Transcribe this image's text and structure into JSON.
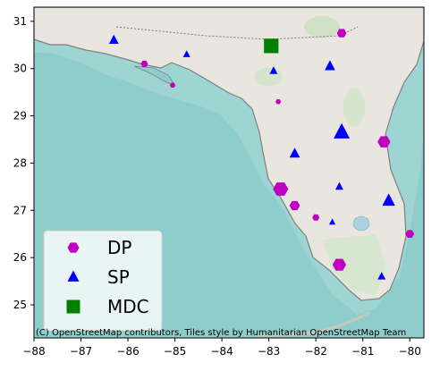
{
  "chart_data": {
    "type": "scatter",
    "xlim": [
      -88,
      -79.7
    ],
    "ylim": [
      24.3,
      31.3
    ],
    "xticks": [
      -88,
      -87,
      -86,
      -85,
      -84,
      -83,
      -82,
      -81,
      -80
    ],
    "xtick_labels": [
      "−88",
      "−87",
      "−86",
      "−85",
      "−84",
      "−83",
      "−82",
      "−81",
      "−80"
    ],
    "yticks": [
      25,
      26,
      27,
      28,
      29,
      30,
      31
    ],
    "ytick_labels": [
      "25",
      "26",
      "27",
      "28",
      "29",
      "30",
      "31"
    ],
    "grid": false,
    "legend_position": "lower-left",
    "basemap": "OpenStreetMap Humanitarian tiles of Florida",
    "attribution": "(C) OpenStreetMap contributors, Tiles style by Humanitarian OpenStreetMap Team",
    "series": [
      {
        "name": "DP",
        "marker": "hexagon",
        "color": "#c000c0",
        "points": [
          {
            "x": -81.45,
            "y": 30.75,
            "size": 1.2
          },
          {
            "x": -85.65,
            "y": 30.1,
            "size": 0.9
          },
          {
            "x": -85.05,
            "y": 29.65,
            "size": 0.7
          },
          {
            "x": -82.8,
            "y": 29.3,
            "size": 0.7
          },
          {
            "x": -80.55,
            "y": 28.45,
            "size": 1.6
          },
          {
            "x": -82.75,
            "y": 27.45,
            "size": 1.9
          },
          {
            "x": -82.45,
            "y": 27.1,
            "size": 1.3
          },
          {
            "x": -82.0,
            "y": 26.85,
            "size": 0.9
          },
          {
            "x": -80.0,
            "y": 26.5,
            "size": 1.1
          },
          {
            "x": -81.5,
            "y": 25.85,
            "size": 1.7
          }
        ]
      },
      {
        "name": "SP",
        "marker": "triangle",
        "color": "#0000ff",
        "points": [
          {
            "x": -86.3,
            "y": 30.6,
            "size": 1.2
          },
          {
            "x": -84.75,
            "y": 30.3,
            "size": 0.9
          },
          {
            "x": -81.7,
            "y": 30.05,
            "size": 1.3
          },
          {
            "x": -82.9,
            "y": 29.95,
            "size": 1.0
          },
          {
            "x": -81.45,
            "y": 28.65,
            "size": 2.0
          },
          {
            "x": -82.45,
            "y": 28.2,
            "size": 1.3
          },
          {
            "x": -81.5,
            "y": 27.5,
            "size": 1.0
          },
          {
            "x": -80.45,
            "y": 27.2,
            "size": 1.6
          },
          {
            "x": -81.65,
            "y": 26.75,
            "size": 0.8
          },
          {
            "x": -80.6,
            "y": 25.6,
            "size": 1.0
          }
        ]
      },
      {
        "name": "MDC",
        "marker": "square",
        "color": "#008000",
        "points": [
          {
            "x": -82.95,
            "y": 30.48,
            "size": 1.8
          }
        ]
      }
    ]
  }
}
